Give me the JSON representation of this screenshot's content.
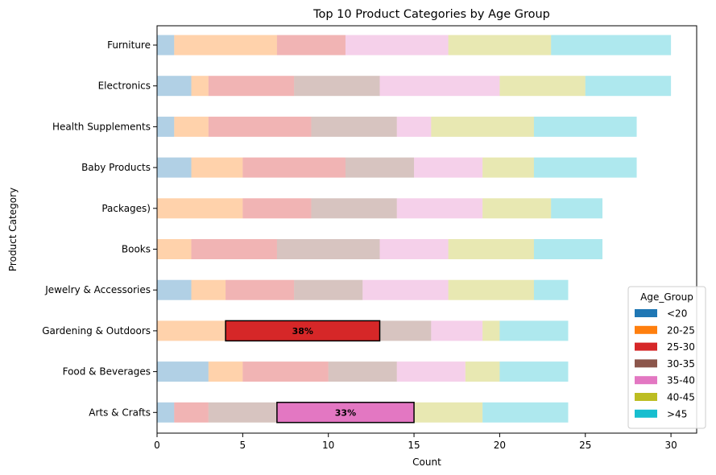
{
  "chart_data": {
    "type": "bar",
    "orientation": "horizontal",
    "stacked": true,
    "title": "Top 10 Product Categories by Age Group",
    "xlabel": "Count",
    "ylabel": "Product Category",
    "xlim": [
      0,
      31.5
    ],
    "xticks": [
      0,
      5,
      10,
      15,
      20,
      25,
      30
    ],
    "categories": [
      "Furniture",
      "Electronics",
      "Health Supplements",
      "Baby Products",
      "Packages)",
      "Books",
      "Jewelry & Accessories",
      "Gardening & Outdoors",
      "Food & Beverages",
      "Arts & Crafts"
    ],
    "series": [
      {
        "name": "<20",
        "color": "#1f77b4",
        "values": [
          1,
          2,
          1,
          2,
          0,
          0,
          2,
          0,
          3,
          1
        ]
      },
      {
        "name": "20-25",
        "color": "#ff7f0e",
        "values": [
          6,
          1,
          2,
          3,
          5,
          2,
          2,
          4,
          2,
          0
        ]
      },
      {
        "name": "25-30",
        "color": "#d62728",
        "values": [
          4,
          5,
          6,
          6,
          4,
          5,
          4,
          9,
          5,
          2
        ]
      },
      {
        "name": "30-35",
        "color": "#8c564b",
        "values": [
          0,
          5,
          5,
          4,
          5,
          6,
          4,
          3,
          4,
          4
        ]
      },
      {
        "name": "35-40",
        "color": "#e377c2",
        "values": [
          6,
          7,
          2,
          4,
          5,
          4,
          5,
          3,
          4,
          8
        ]
      },
      {
        "name": "40-45",
        "color": "#bcbd22",
        "values": [
          6,
          5,
          6,
          3,
          4,
          5,
          5,
          1,
          2,
          4
        ]
      },
      {
        "name": ">45",
        "color": "#17becf",
        "values": [
          7,
          5,
          6,
          6,
          3,
          4,
          2,
          4,
          4,
          5
        ]
      }
    ],
    "highlights": [
      {
        "category": "Gardening & Outdoors",
        "series": "25-30",
        "label": "38%"
      },
      {
        "category": "Arts & Crafts",
        "series": "35-40",
        "label": "33%"
      }
    ],
    "legend": {
      "title": "Age_Group",
      "placement": "lower-right"
    },
    "grid": false
  }
}
